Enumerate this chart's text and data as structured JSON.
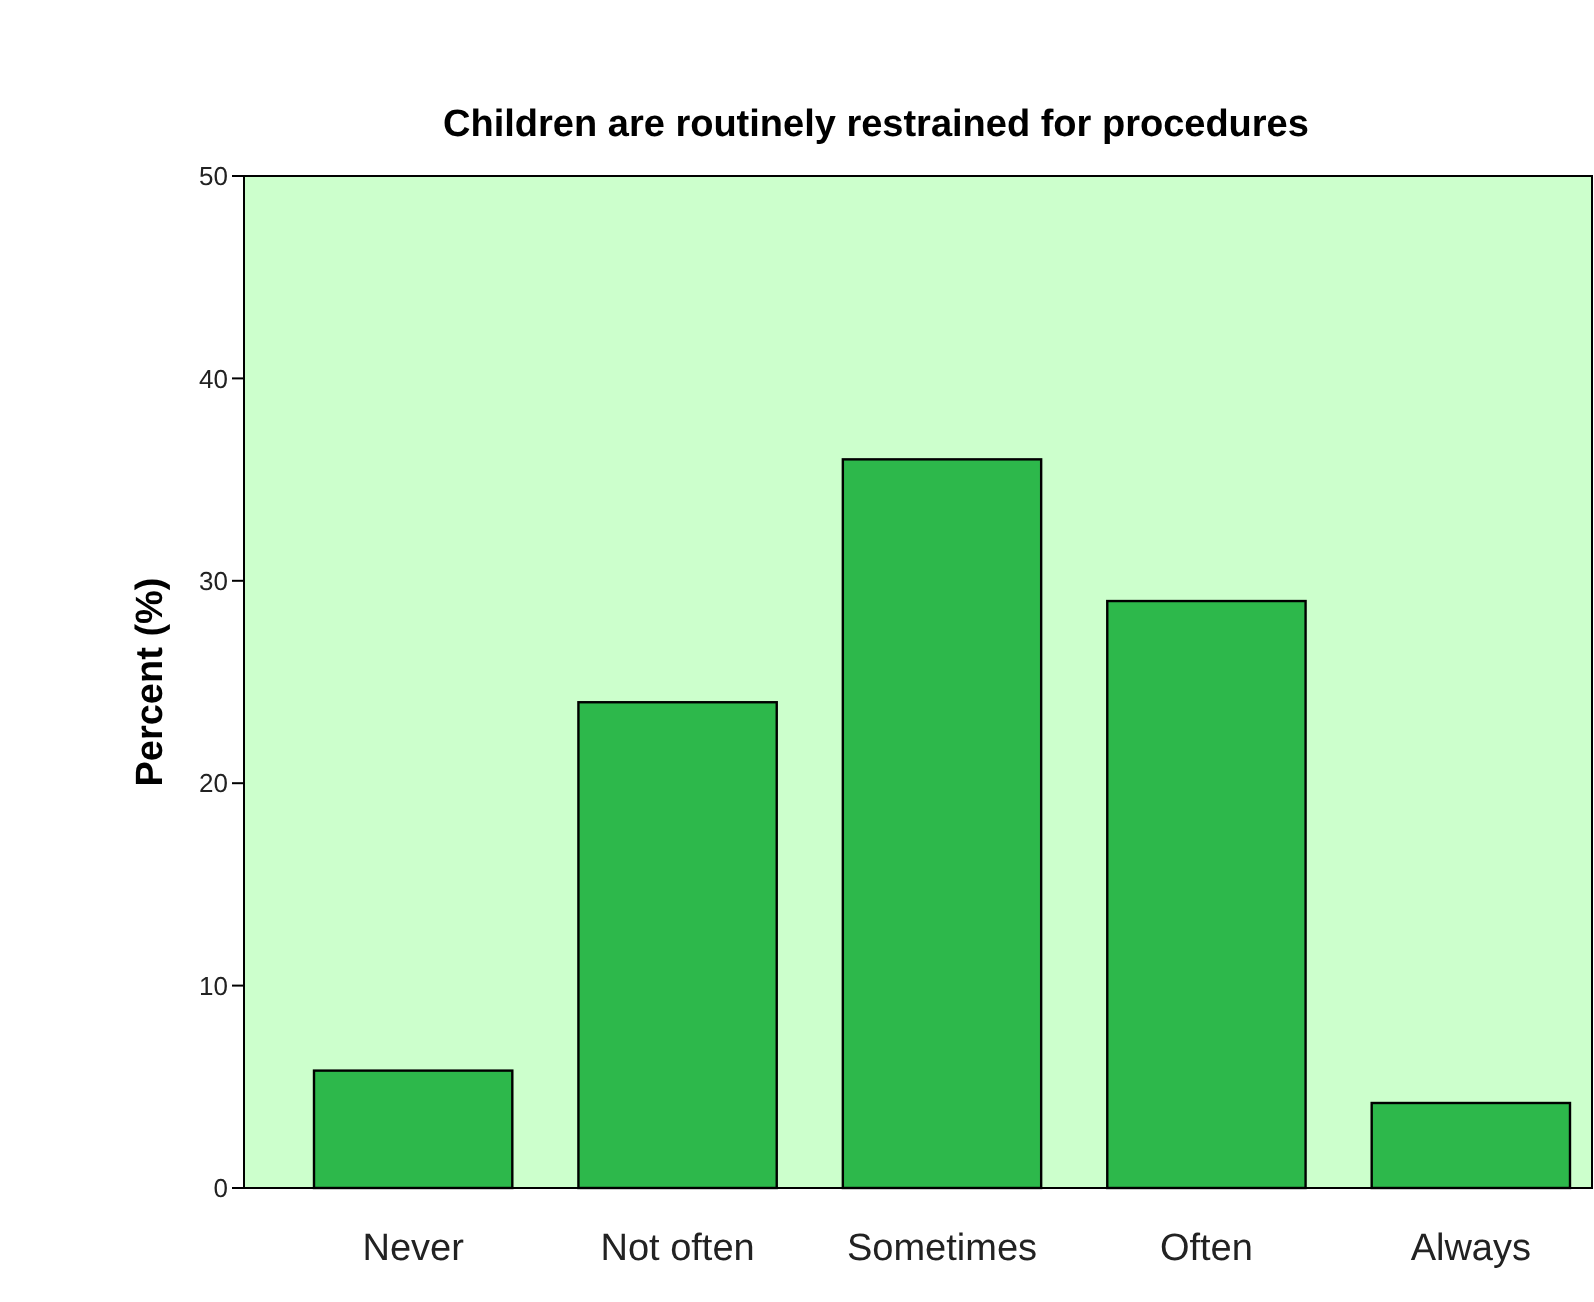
{
  "chart_data": {
    "type": "bar",
    "title": "Children are routinely restrained for procedures",
    "ylabel": "Percent (%)",
    "categories": [
      "Never",
      "Not often",
      "Sometimes",
      "Often",
      "Always"
    ],
    "values": [
      5.8,
      24.0,
      36.0,
      29.0,
      4.2
    ],
    "color": "#2db84b",
    "ylim": [
      0,
      50
    ],
    "yticks": [
      0,
      10,
      20,
      30,
      40,
      50
    ],
    "grid": false
  }
}
